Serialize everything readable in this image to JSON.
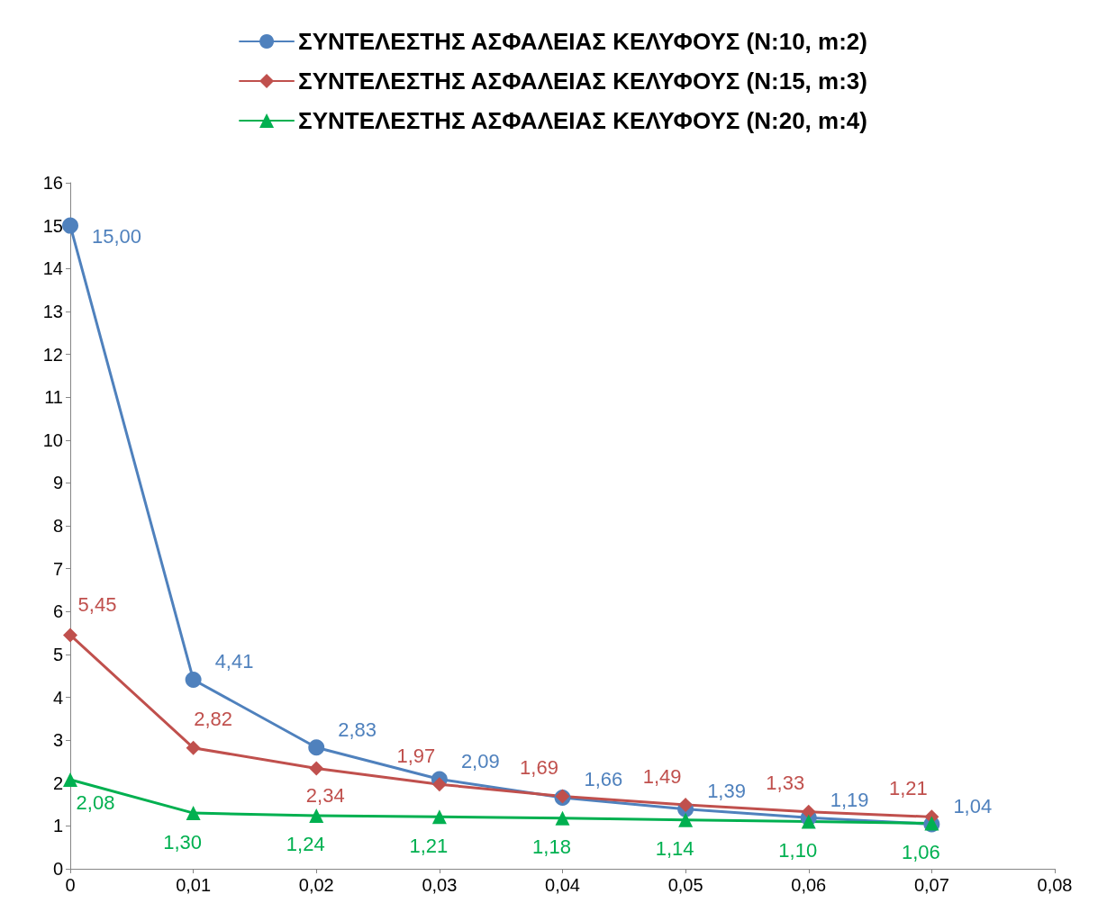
{
  "chart_data": {
    "type": "line",
    "x": [
      0,
      0.01,
      0.02,
      0.03,
      0.04,
      0.05,
      0.06,
      0.07
    ],
    "series": [
      {
        "name": "ΣΥΝΤΕΛΕΣΤΗΣ ΑΣΦΑΛΕΙΑΣ ΚΕΛΥΦΟΥΣ (N:10, m:2)",
        "color": "#4f81bd",
        "marker": "circle",
        "values": [
          15.0,
          4.41,
          2.83,
          2.09,
          1.66,
          1.39,
          1.19,
          1.04
        ],
        "value_labels": [
          "15,00",
          "4,41",
          "2,83",
          "2,09",
          "1,66",
          "1,39",
          "1,19",
          "1,04"
        ]
      },
      {
        "name": "ΣΥΝΤΕΛΕΣΤΗΣ ΑΣΦΑΛΕΙΑΣ ΚΕΛΥΦΟΥΣ (N:15, m:3)",
        "color": "#c0504d",
        "marker": "diamond",
        "values": [
          5.45,
          2.82,
          2.34,
          1.97,
          1.69,
          1.49,
          1.33,
          1.21
        ],
        "value_labels": [
          "5,45",
          "2,82",
          "2,34",
          "1,97",
          "1,69",
          "1,49",
          "1,33",
          "1,21"
        ]
      },
      {
        "name": "ΣΥΝΤΕΛΕΣΤΗΣ ΑΣΦΑΛΕΙΑΣ ΚΕΛΥΦΟΥΣ (N:20, m:4)",
        "color": "#00b050",
        "marker": "triangle",
        "values": [
          2.08,
          1.3,
          1.24,
          1.21,
          1.18,
          1.14,
          1.1,
          1.06
        ],
        "value_labels": [
          "2,08",
          "1,30",
          "1,24",
          "1,21",
          "1,18",
          "1,14",
          "1,10",
          "1,06"
        ]
      }
    ],
    "xlim": [
      0,
      0.08
    ],
    "xticks": [
      0,
      {
        "value": 0.01,
        "label": "0,01"
      },
      {
        "value": 0.02,
        "label": "0,02"
      },
      {
        "value": 0.03,
        "label": "0,03"
      },
      {
        "value": 0.04,
        "label": "0,04"
      },
      {
        "value": 0.05,
        "label": "0,05"
      },
      {
        "value": 0.06,
        "label": "0,06"
      },
      {
        "value": 0.07,
        "label": "0,07"
      },
      {
        "value": 0.08,
        "label": "0,08"
      }
    ],
    "ylim": [
      0,
      16
    ],
    "yticks": [
      0,
      1,
      2,
      3,
      4,
      5,
      6,
      7,
      8,
      9,
      10,
      11,
      12,
      13,
      14,
      15,
      16
    ],
    "grid": false,
    "legend": "top",
    "line_style": "solid"
  }
}
